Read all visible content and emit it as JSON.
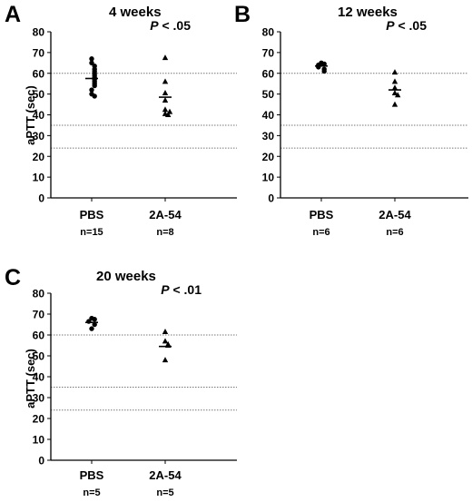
{
  "chart_data": [
    {
      "type": "scatter",
      "panel": "A",
      "title": "4 weeks",
      "p_value": {
        "prefix": "P",
        "rest": " < .05"
      },
      "ylabel": "aPTT (sec)",
      "ylim": [
        0,
        80
      ],
      "yticks": [
        "0",
        "10",
        "20",
        "30",
        "40",
        "50",
        "60",
        "70",
        "80"
      ],
      "reference_lines": [
        60,
        35,
        24
      ],
      "categories": [
        "PBS",
        "2A-54"
      ],
      "n_labels": [
        "n=15",
        "n=8"
      ],
      "series": [
        {
          "category": "PBS",
          "marker": "circle",
          "mean": 57.5,
          "values": [
            67,
            65,
            63.5,
            62,
            61,
            60,
            59,
            58,
            57,
            56,
            55,
            54,
            52,
            50,
            49
          ]
        },
        {
          "category": "2A-54",
          "marker": "triangle",
          "mean": 48.5,
          "values": [
            67.5,
            56,
            50.5,
            47,
            42.5,
            40.5,
            40,
            41.5
          ]
        }
      ]
    },
    {
      "type": "scatter",
      "panel": "B",
      "title": "12 weeks",
      "p_value": {
        "prefix": "P",
        "rest": " < .05"
      },
      "ylabel": "",
      "ylim": [
        0,
        80
      ],
      "yticks": [
        "0",
        "10",
        "20",
        "30",
        "40",
        "50",
        "60",
        "70",
        "80"
      ],
      "reference_lines": [
        60,
        35,
        24
      ],
      "categories": [
        "PBS",
        "2A-54"
      ],
      "n_labels": [
        "n=6",
        "n=6"
      ],
      "series": [
        {
          "category": "PBS",
          "marker": "circle",
          "mean": 63.5,
          "values": [
            65,
            64.5,
            64,
            63,
            62,
            61
          ]
        },
        {
          "category": "2A-54",
          "marker": "triangle",
          "mean": 52,
          "values": [
            60.5,
            56,
            53,
            50.5,
            49.5,
            45
          ]
        }
      ]
    },
    {
      "type": "scatter",
      "panel": "C",
      "title": "20 weeks",
      "p_value": {
        "prefix": "P",
        "rest": " < .01"
      },
      "ylabel": "aPTT (sec)",
      "ylim": [
        0,
        80
      ],
      "yticks": [
        "0",
        "10",
        "20",
        "30",
        "40",
        "50",
        "60",
        "70",
        "80"
      ],
      "reference_lines": [
        60,
        35,
        24
      ],
      "categories": [
        "PBS",
        "2A-54"
      ],
      "n_labels": [
        "n=5",
        "n=5"
      ],
      "series": [
        {
          "category": "PBS",
          "marker": "circle",
          "mean": 66,
          "values": [
            68,
            67.5,
            66.5,
            65,
            63
          ]
        },
        {
          "category": "2A-54",
          "marker": "triangle",
          "mean": 54.5,
          "values": [
            61.5,
            57,
            55.5,
            55,
            48
          ]
        }
      ]
    }
  ]
}
